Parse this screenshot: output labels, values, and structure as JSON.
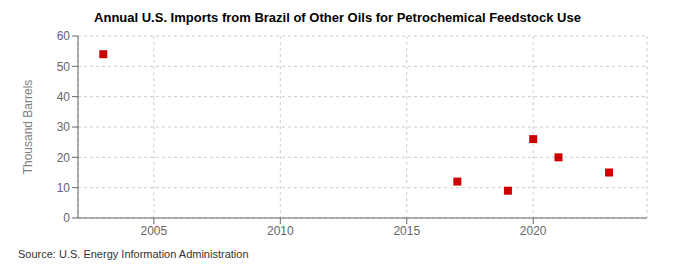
{
  "chart_data": {
    "type": "scatter",
    "title": "Annual U.S. Imports from Brazil of Other Oils for Petrochemical Feedstock Use",
    "ylabel": "Thousand Barrels",
    "annotation": "Source: U.S. Energy Information Administration",
    "x": [
      2003,
      2017,
      2019,
      2020,
      2021,
      2023
    ],
    "values": [
      54,
      12,
      9,
      26,
      20,
      15
    ],
    "color": "#cc0000",
    "marker": "square",
    "xlim": [
      2002,
      2024.5
    ],
    "ylim": [
      0,
      60
    ],
    "xticks": [
      2005,
      2010,
      2015,
      2020
    ],
    "yticks": [
      0,
      10,
      20,
      30,
      40,
      50,
      60
    ],
    "grid": true
  }
}
